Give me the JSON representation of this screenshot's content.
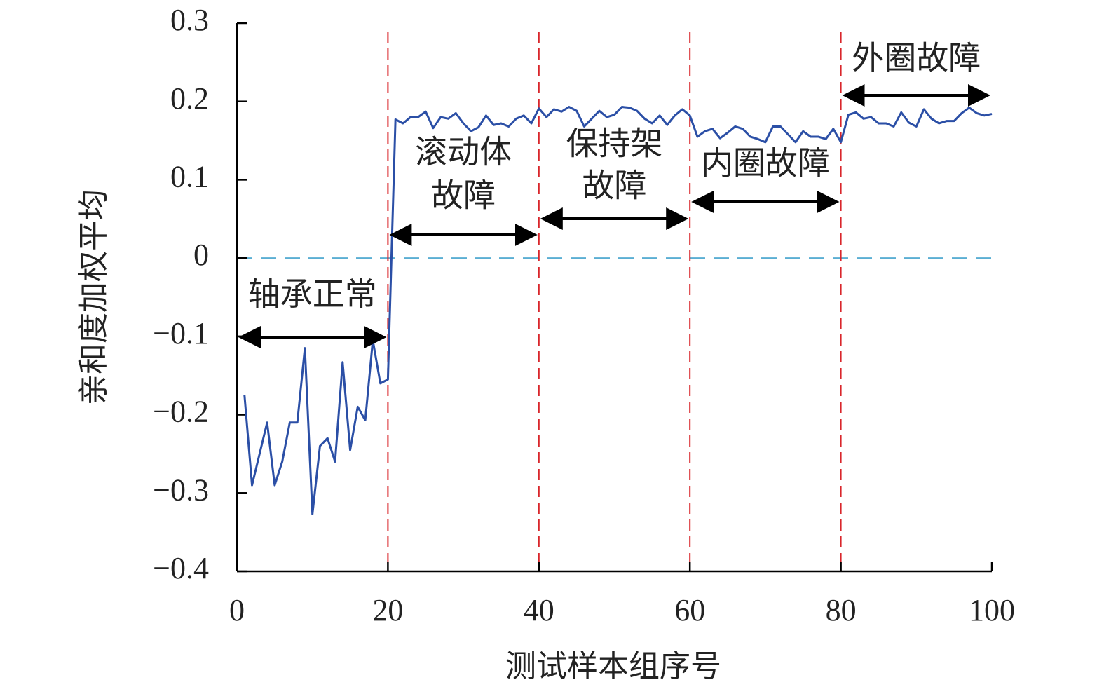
{
  "chart_data": {
    "type": "line",
    "xlabel": "测试样本组序号",
    "ylabel": "亲和度加权平均",
    "x": [
      1,
      2,
      3,
      4,
      5,
      6,
      7,
      8,
      9,
      10,
      11,
      12,
      13,
      14,
      15,
      16,
      17,
      18,
      19,
      20,
      21,
      22,
      23,
      24,
      25,
      26,
      27,
      28,
      29,
      30,
      31,
      32,
      33,
      34,
      35,
      36,
      37,
      38,
      39,
      40,
      41,
      42,
      43,
      44,
      45,
      46,
      47,
      48,
      49,
      50,
      51,
      52,
      53,
      54,
      55,
      56,
      57,
      58,
      59,
      60,
      61,
      62,
      63,
      64,
      65,
      66,
      67,
      68,
      69,
      70,
      71,
      72,
      73,
      74,
      75,
      76,
      77,
      78,
      79,
      80,
      81,
      82,
      83,
      84,
      85,
      86,
      87,
      88,
      89,
      90,
      91,
      92,
      93,
      94,
      95,
      96,
      97,
      98,
      99,
      100
    ],
    "series": [
      {
        "color": "#2b4fa6",
        "values": [
          -0.175,
          -0.29,
          -0.25,
          -0.21,
          -0.29,
          -0.26,
          -0.21,
          -0.21,
          -0.115,
          -0.327,
          -0.24,
          -0.23,
          -0.26,
          -0.133,
          -0.245,
          -0.19,
          -0.207,
          -0.105,
          -0.16,
          -0.155,
          0.177,
          0.172,
          0.18,
          0.18,
          0.187,
          0.166,
          0.18,
          0.178,
          0.185,
          0.172,
          0.162,
          0.167,
          0.182,
          0.17,
          0.172,
          0.168,
          0.178,
          0.182,
          0.172,
          0.191,
          0.18,
          0.19,
          0.187,
          0.193,
          0.188,
          0.168,
          0.178,
          0.188,
          0.18,
          0.183,
          0.193,
          0.192,
          0.188,
          0.178,
          0.172,
          0.182,
          0.17,
          0.182,
          0.19,
          0.182,
          0.155,
          0.162,
          0.165,
          0.153,
          0.16,
          0.168,
          0.165,
          0.155,
          0.152,
          0.148,
          0.168,
          0.168,
          0.158,
          0.148,
          0.162,
          0.155,
          0.155,
          0.152,
          0.165,
          0.148,
          0.183,
          0.186,
          0.178,
          0.18,
          0.172,
          0.172,
          0.168,
          0.186,
          0.173,
          0.168,
          0.19,
          0.178,
          0.172,
          0.175,
          0.175,
          0.185,
          0.192,
          0.185,
          0.182,
          0.184
        ]
      }
    ],
    "xlim": [
      0,
      100
    ],
    "xticks": [
      0,
      20,
      40,
      60,
      80,
      100
    ],
    "ylim": [
      -0.4,
      0.3
    ],
    "yticks": [
      {
        "value": -0.4,
        "label": "−0.4"
      },
      {
        "value": -0.3,
        "label": "−0.3"
      },
      {
        "value": -0.2,
        "label": "−0.2"
      },
      {
        "value": -0.1,
        "label": "−0.1"
      },
      0,
      0.1,
      0.2,
      0.3
    ],
    "vlines": [
      20,
      40,
      60,
      80
    ],
    "vline_color": "#d9262b",
    "hlines": [
      0
    ],
    "hline_color": "#5aaed3",
    "annotations": [
      {
        "lines": [
          "轴承正常"
        ],
        "span": [
          0,
          20
        ]
      },
      {
        "lines": [
          "滚动体",
          "故障"
        ],
        "span": [
          20,
          40
        ]
      },
      {
        "lines": [
          "保持架",
          "故障"
        ],
        "span": [
          40,
          60
        ]
      },
      {
        "lines": [
          "内圈故障"
        ],
        "span": [
          60,
          80
        ]
      },
      {
        "lines": [
          "外圈故障"
        ],
        "span": [
          80,
          100
        ]
      }
    ]
  }
}
